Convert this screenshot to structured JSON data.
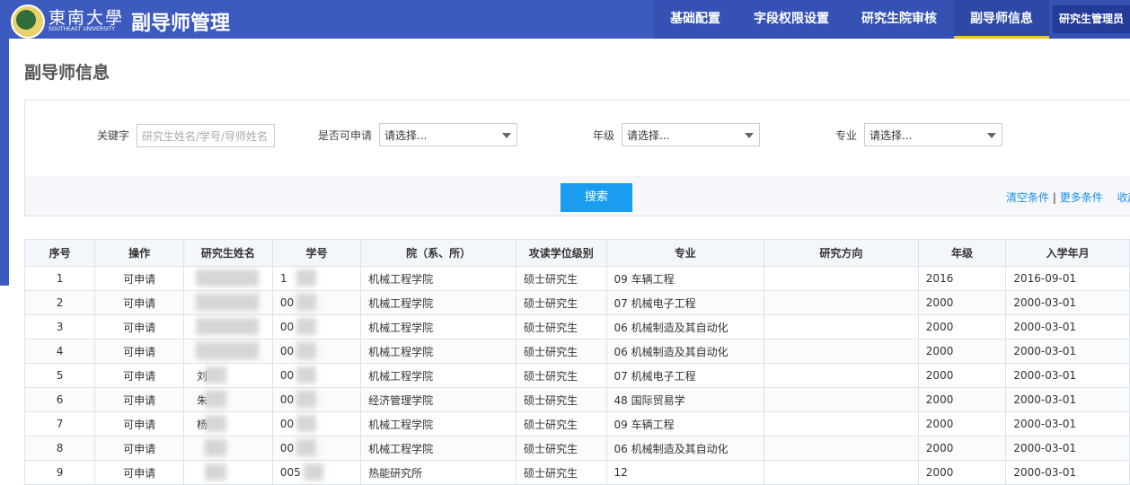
{
  "header": {
    "logo_text": "東南大學",
    "logo_subtext": "SOUTHEAST UNIVERSITY",
    "title": "副导师管理"
  },
  "nav": [
    "基础配置",
    "字段权限设置",
    "研究生院审核",
    "副导师信息",
    "研究生管理员"
  ],
  "page_title": "副导师信息",
  "filters": {
    "keyword_label": "关键字",
    "keyword_placeholder": "研究生姓名/学号/导师姓名",
    "apply_label": "是否可申请",
    "apply_placeholder": "请选择...",
    "grade_label": "年级",
    "grade_placeholder": "请选择...",
    "major_label": "专业",
    "major_placeholder": "请选择..."
  },
  "search_button": "搜索",
  "links": {
    "clear": "清空条件",
    "separator": "|",
    "more": "更多条件",
    "collapse": "收起"
  },
  "table": {
    "columns": [
      "序号",
      "操作",
      "研究生姓名",
      "学号",
      "院（系、所）",
      "攻读学位级别",
      "专业",
      "研究方向",
      "年级",
      "入学年月"
    ],
    "rows": [
      [
        "1",
        "可申请",
        null,
        "1",
        "机械工程学院",
        "硕士研究生",
        "09 车辆工程",
        null,
        "2016",
        "2016-09-01"
      ],
      [
        "2",
        "可申请",
        null,
        "00",
        "机械工程学院",
        "硕士研究生",
        "07 机械电子工程",
        null,
        "2000",
        "2000-03-01"
      ],
      [
        "3",
        "可申请",
        null,
        "00",
        "机械工程学院",
        "硕士研究生",
        "06 机械制造及其自动化",
        null,
        "2000",
        "2000-03-01"
      ],
      [
        "4",
        "可申请",
        null,
        "00",
        "机械工程学院",
        "硕士研究生",
        "06 机械制造及其自动化",
        null,
        "2000",
        "2000-03-01"
      ],
      [
        "5",
        "可申请",
        "刘",
        "00",
        "机械工程学院",
        "硕士研究生",
        "07 机械电子工程",
        null,
        "2000",
        "2000-03-01"
      ],
      [
        "6",
        "可申请",
        "朱",
        "00",
        "经济管理学院",
        "硕士研究生",
        "48 国际贸易学",
        null,
        "2000",
        "2000-03-01"
      ],
      [
        "7",
        "可申请",
        "杨",
        "00",
        "机械工程学院",
        "硕士研究生",
        "09 车辆工程",
        null,
        "2000",
        "2000-03-01"
      ],
      [
        "8",
        "可申请",
        null,
        "00",
        "机械工程学院",
        "硕士研究生",
        "06 机械制造及其自动化",
        null,
        "2000",
        "2000-03-01"
      ],
      [
        "9",
        "可申请",
        null,
        "005",
        "热能研究所",
        "硕士研究生",
        "12",
        null,
        "2000",
        "2000-03-01"
      ]
    ]
  }
}
